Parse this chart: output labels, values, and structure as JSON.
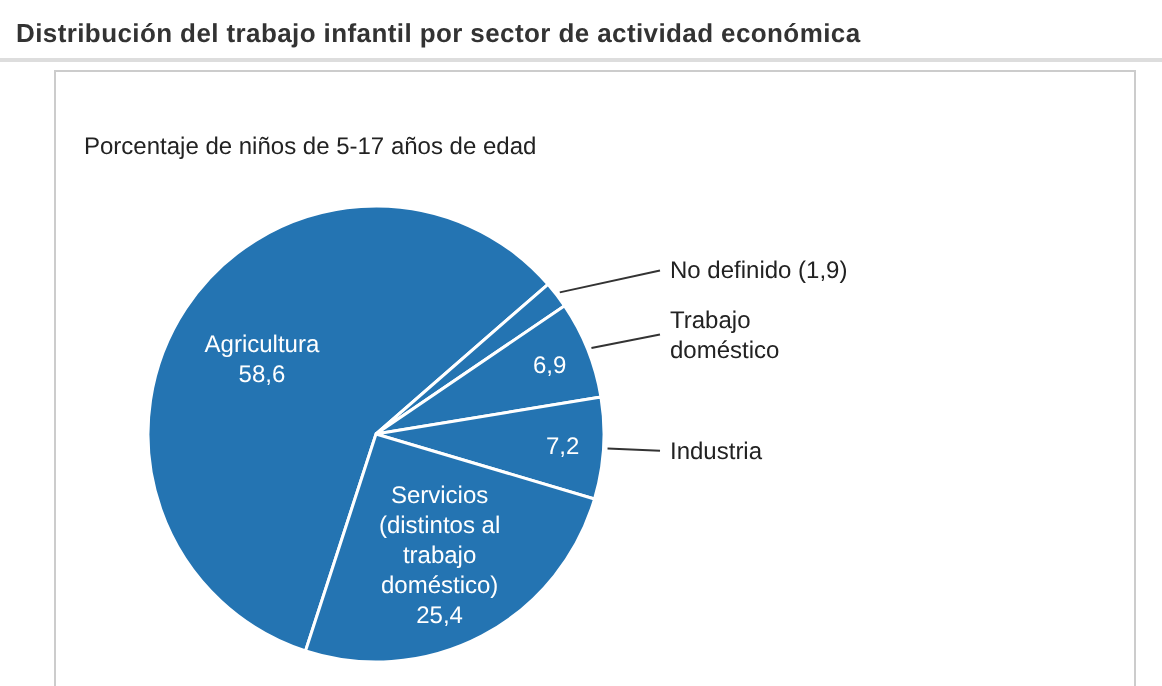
{
  "chart_data": {
    "type": "pie",
    "title": "Distribución del trabajo infantil por sector de actividad económica",
    "subtitle": "Porcentaje de niños de 5-17 años de edad",
    "categories": [
      "Agricultura",
      "No definido",
      "Trabajo doméstico",
      "Industria",
      "Servicios (distintos al trabajo doméstico)"
    ],
    "values": [
      58.6,
      1.9,
      6.9,
      7.2,
      25.4
    ],
    "colors": [
      "#2474b2",
      "#2474b2",
      "#2474b2",
      "#2474b2",
      "#2474b2"
    ],
    "value_labels": [
      "58,6",
      "(1,9)",
      "6,9",
      "7,2",
      "25,4"
    ],
    "legend": false
  }
}
